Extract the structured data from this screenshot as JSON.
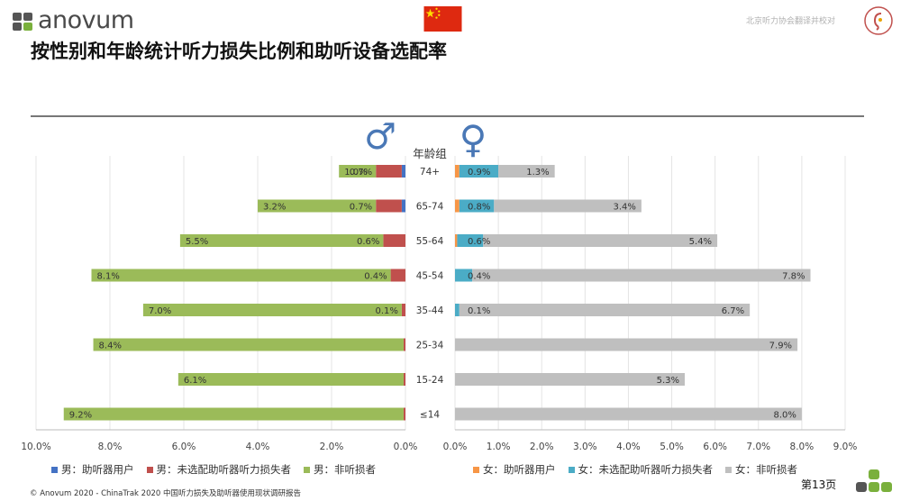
{
  "header": {
    "logo_text": "anovum",
    "title": "按性别和年龄统计听力损失比例和助听设备选配率",
    "note": "北京听力协会翻译并校对"
  },
  "footer": {
    "copyright": "© Anovum 2020 - ChinaTrak 2020 中国听力损失及助听器使用现状调研报告",
    "page": "第13页"
  },
  "colors": {
    "male_aid": "#4472c4",
    "male_unaided": "#c0504d",
    "male_nonloss": "#9bbb59",
    "female_aid": "#f79646",
    "female_unaided": "#4bacc6",
    "female_nonloss": "#bfbfbf",
    "male_symbol": "#4a78b6",
    "female_symbol": "#4a78b6"
  },
  "chart_data": {
    "type": "bar",
    "orientation": "horizontal-population-pyramid",
    "center_label": "年龄组",
    "male_symbol": "♂",
    "female_symbol": "♀",
    "categories": [
      "74+",
      "65-74",
      "55-64",
      "45-54",
      "35-44",
      "25-34",
      "15-24",
      "≤14"
    ],
    "male": {
      "xlim": [
        10,
        0
      ],
      "ticks": [
        "10.0%",
        "8.0%",
        "6.0%",
        "4.0%",
        "2.0%",
        "0.0%"
      ],
      "series": [
        {
          "name": "男：助听器用户",
          "values": [
            0.1,
            0.1,
            0,
            0,
            0,
            0,
            0,
            0
          ]
        },
        {
          "name": "男：未选配助听器听力损失者",
          "values": [
            0.7,
            0.7,
            0.6,
            0.4,
            0.1,
            0.05,
            0.05,
            0.05
          ]
        },
        {
          "name": "男：非听损者",
          "values": [
            1.0,
            3.2,
            5.5,
            8.1,
            7.0,
            8.4,
            6.1,
            9.2
          ]
        }
      ],
      "labels": [
        {
          "cat": "74+",
          "nonloss": "1.0%",
          "unaided": "0.7%"
        },
        {
          "cat": "65-74",
          "nonloss": "3.2%",
          "unaided": "0.7%"
        },
        {
          "cat": "55-64",
          "nonloss": "5.5%",
          "unaided": "0.6%"
        },
        {
          "cat": "45-54",
          "nonloss": "8.1%",
          "unaided": "0.4%"
        },
        {
          "cat": "35-44",
          "nonloss": "7.0%",
          "unaided": "0.1%"
        },
        {
          "cat": "25-34",
          "nonloss": "8.4%",
          "unaided": ""
        },
        {
          "cat": "15-24",
          "nonloss": "6.1%",
          "unaided": ""
        },
        {
          "cat": "≤14",
          "nonloss": "9.2%",
          "unaided": ""
        }
      ]
    },
    "female": {
      "xlim": [
        0,
        9
      ],
      "ticks": [
        "0.0%",
        "1.0%",
        "2.0%",
        "3.0%",
        "4.0%",
        "5.0%",
        "6.0%",
        "7.0%",
        "8.0%",
        "9.0%"
      ],
      "series": [
        {
          "name": "女：助听器用户",
          "values": [
            0.1,
            0.1,
            0.05,
            0,
            0,
            0,
            0,
            0
          ]
        },
        {
          "name": "女：未选配助听器听力损失者",
          "values": [
            0.9,
            0.8,
            0.6,
            0.4,
            0.1,
            0,
            0,
            0
          ]
        },
        {
          "name": "女：非听损者",
          "values": [
            1.3,
            3.4,
            5.4,
            7.8,
            6.7,
            7.9,
            5.3,
            8.0
          ]
        }
      ],
      "labels": [
        {
          "cat": "74+",
          "unaided": "0.9%",
          "nonloss": "1.3%"
        },
        {
          "cat": "65-74",
          "unaided": "0.8%",
          "nonloss": "3.4%"
        },
        {
          "cat": "55-64",
          "unaided": "0.6%",
          "nonloss": "5.4%"
        },
        {
          "cat": "45-54",
          "unaided": "0.4%",
          "nonloss": "7.8%"
        },
        {
          "cat": "35-44",
          "unaided": "0.1%",
          "nonloss": "6.7%"
        },
        {
          "cat": "25-34",
          "unaided": "",
          "nonloss": "7.9%"
        },
        {
          "cat": "15-24",
          "unaided": "",
          "nonloss": "5.3%"
        },
        {
          "cat": "≤14",
          "unaided": "",
          "nonloss": "8.0%"
        }
      ]
    },
    "grid": true,
    "legend_placement": "bottom"
  }
}
